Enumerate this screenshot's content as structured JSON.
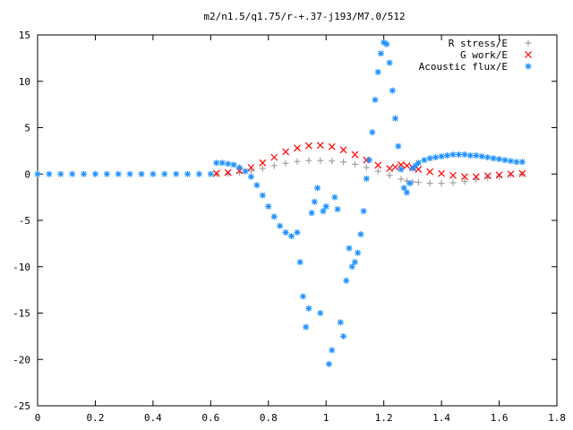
{
  "chart_data": {
    "type": "scatter",
    "title": "m2/n1.5/q1.75/r-+.37-j193/M7.0/512",
    "xlabel": "",
    "ylabel": "",
    "xlim": [
      0,
      1.8
    ],
    "ylim": [
      -25,
      15
    ],
    "xticks": [
      "0",
      "0.2",
      "0.4",
      "0.6",
      "0.8",
      "1",
      "1.2",
      "1.4",
      "1.6",
      "1.8"
    ],
    "yticks": [
      "-25",
      "-20",
      "-15",
      "-10",
      "-5",
      "0",
      "5",
      "10",
      "15"
    ],
    "grid": false,
    "legend_position": "top-right",
    "series": [
      {
        "name": "R stress/E",
        "marker": "+",
        "color": "#a0a0a0",
        "x": [
          0.62,
          0.66,
          0.7,
          0.74,
          0.78,
          0.82,
          0.86,
          0.9,
          0.94,
          0.98,
          1.02,
          1.06,
          1.1,
          1.14,
          1.18,
          1.22,
          1.26,
          1.28,
          1.3,
          1.32,
          1.36,
          1.4,
          1.44,
          1.48,
          1.52,
          1.56,
          1.6,
          1.64,
          1.68
        ],
        "y": [
          0.0,
          0.05,
          0.15,
          0.35,
          0.6,
          0.9,
          1.15,
          1.35,
          1.45,
          1.45,
          1.4,
          1.3,
          1.05,
          0.7,
          0.3,
          -0.15,
          -0.55,
          -0.75,
          -0.85,
          -0.9,
          -1.0,
          -1.0,
          -0.95,
          -0.8,
          -0.6,
          -0.4,
          -0.25,
          -0.1,
          0.0
        ]
      },
      {
        "name": "G work/E",
        "marker": "x",
        "color": "#ff0000",
        "x": [
          0.62,
          0.66,
          0.7,
          0.74,
          0.78,
          0.82,
          0.86,
          0.9,
          0.94,
          0.98,
          1.02,
          1.06,
          1.1,
          1.14,
          1.18,
          1.22,
          1.24,
          1.26,
          1.28,
          1.3,
          1.32,
          1.36,
          1.4,
          1.44,
          1.48,
          1.52,
          1.56,
          1.6,
          1.64,
          1.68
        ],
        "y": [
          0.05,
          0.15,
          0.35,
          0.7,
          1.2,
          1.8,
          2.4,
          2.8,
          3.05,
          3.1,
          2.95,
          2.6,
          2.1,
          1.5,
          0.95,
          0.6,
          0.75,
          1.0,
          0.9,
          0.7,
          0.5,
          0.25,
          0.05,
          -0.15,
          -0.3,
          -0.3,
          -0.2,
          -0.1,
          0.0,
          0.05
        ]
      },
      {
        "name": "Acoustic flux/E",
        "marker": "*",
        "color": "#1e90ff",
        "x": [
          0.0,
          0.04,
          0.08,
          0.12,
          0.16,
          0.2,
          0.24,
          0.28,
          0.32,
          0.36,
          0.4,
          0.44,
          0.48,
          0.52,
          0.56,
          0.6,
          0.62,
          0.64,
          0.66,
          0.68,
          0.7,
          0.72,
          0.74,
          0.76,
          0.78,
          0.8,
          0.82,
          0.84,
          0.86,
          0.88,
          0.9,
          0.91,
          0.92,
          0.93,
          0.94,
          0.95,
          0.96,
          0.97,
          0.98,
          0.99,
          1.0,
          1.01,
          1.02,
          1.03,
          1.04,
          1.05,
          1.06,
          1.07,
          1.08,
          1.09,
          1.1,
          1.11,
          1.12,
          1.13,
          1.14,
          1.15,
          1.16,
          1.17,
          1.18,
          1.19,
          1.2,
          1.21,
          1.22,
          1.23,
          1.24,
          1.25,
          1.26,
          1.27,
          1.28,
          1.29,
          1.3,
          1.31,
          1.32,
          1.34,
          1.36,
          1.38,
          1.4,
          1.42,
          1.44,
          1.46,
          1.48,
          1.5,
          1.52,
          1.54,
          1.56,
          1.58,
          1.6,
          1.62,
          1.64,
          1.66,
          1.68
        ],
        "y": [
          0,
          0,
          0,
          0,
          0,
          0,
          0,
          0,
          0,
          0,
          0,
          0,
          0,
          0,
          0,
          0,
          1.2,
          1.2,
          1.1,
          1.0,
          0.7,
          0.3,
          -0.3,
          -1.2,
          -2.3,
          -3.5,
          -4.6,
          -5.6,
          -6.3,
          -6.7,
          -6.3,
          -9.5,
          -13.2,
          -16.5,
          -14.5,
          -4.2,
          -3.0,
          -1.5,
          -15.0,
          -4.0,
          -3.5,
          -20.5,
          -19.0,
          -2.5,
          -3.8,
          -16.0,
          -17.5,
          -11.5,
          -8.0,
          -10.0,
          -9.5,
          -8.5,
          -6.5,
          -4.0,
          -0.5,
          1.5,
          4.5,
          8.0,
          11.0,
          13.0,
          14.2,
          14.0,
          12.0,
          9.0,
          6.0,
          3.0,
          0.5,
          -1.5,
          -2.0,
          -1.0,
          0.6,
          0.9,
          1.2,
          1.5,
          1.7,
          1.8,
          1.9,
          2.0,
          2.1,
          2.1,
          2.1,
          2.0,
          2.0,
          1.9,
          1.8,
          1.7,
          1.6,
          1.5,
          1.4,
          1.3,
          1.3
        ]
      }
    ]
  }
}
